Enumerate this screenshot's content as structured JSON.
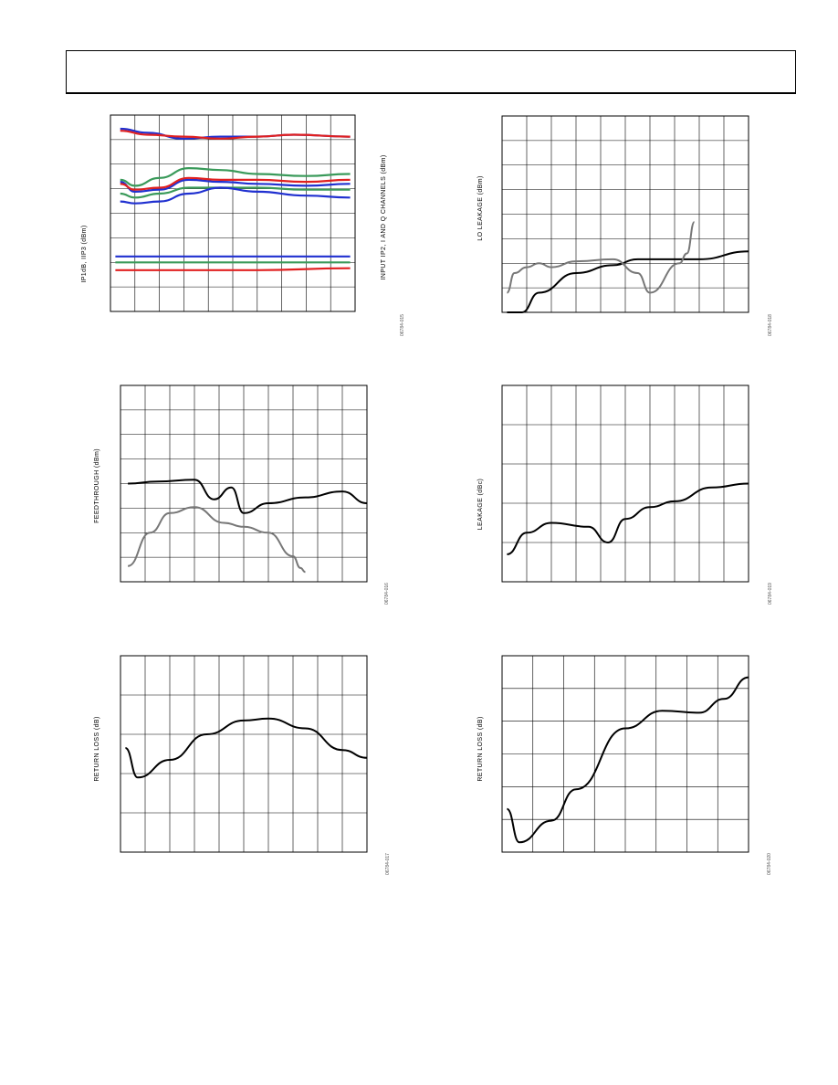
{
  "colors": {
    "blue": "#2030d0",
    "green": "#3a9a5a",
    "red": "#e02020",
    "black": "#000000",
    "gray": "#777777"
  },
  "charts": {
    "c1": {
      "ylabel": "IP1dB, IIP3 (dBm)",
      "ylabel_right": "INPUT IP2, I AND Q CHANNELS (dBm)",
      "code": "06784-015"
    },
    "c2": {
      "ylabel": "LO LEAKAGE (dBm)",
      "code": "06784-018"
    },
    "c3": {
      "ylabel": "FEEDTHROUGH (dBm)",
      "code": "06784-016"
    },
    "c4": {
      "ylabel": "LEAKAGE (dBc)",
      "code": "06784-019"
    },
    "c5": {
      "ylabel": "RETURN LOSS (dB)",
      "code": "06784-017"
    },
    "c6": {
      "ylabel": "RETURN LOSS (dB)",
      "code": "06784-020"
    }
  },
  "chart_data": [
    {
      "type": "line",
      "ylabel": "IP1dB, IIP3 (dBm)",
      "grid": true,
      "series": [
        {
          "color": "blue",
          "values": [
            [
              0.04,
              0.93
            ],
            [
              0.15,
              0.91
            ],
            [
              0.3,
              0.88
            ],
            [
              0.45,
              0.89
            ],
            [
              0.6,
              0.89
            ],
            [
              0.75,
              0.9
            ],
            [
              0.98,
              0.89
            ]
          ]
        },
        {
          "color": "red",
          "values": [
            [
              0.04,
              0.92
            ],
            [
              0.15,
              0.9
            ],
            [
              0.3,
              0.89
            ],
            [
              0.45,
              0.88
            ],
            [
              0.6,
              0.89
            ],
            [
              0.75,
              0.9
            ],
            [
              0.98,
              0.89
            ]
          ]
        },
        {
          "color": "blue",
          "values": [
            [
              0.04,
              0.66
            ],
            [
              0.1,
              0.61
            ],
            [
              0.2,
              0.62
            ],
            [
              0.32,
              0.67
            ],
            [
              0.45,
              0.66
            ],
            [
              0.6,
              0.65
            ],
            [
              0.8,
              0.64
            ],
            [
              0.98,
              0.65
            ]
          ]
        },
        {
          "color": "red",
          "values": [
            [
              0.04,
              0.65
            ],
            [
              0.1,
              0.62
            ],
            [
              0.2,
              0.63
            ],
            [
              0.32,
              0.68
            ],
            [
              0.45,
              0.67
            ],
            [
              0.6,
              0.67
            ],
            [
              0.8,
              0.66
            ],
            [
              0.98,
              0.67
            ]
          ]
        },
        {
          "color": "green",
          "values": [
            [
              0.04,
              0.67
            ],
            [
              0.1,
              0.64
            ],
            [
              0.2,
              0.68
            ],
            [
              0.32,
              0.73
            ],
            [
              0.45,
              0.72
            ],
            [
              0.6,
              0.7
            ],
            [
              0.8,
              0.69
            ],
            [
              0.98,
              0.7
            ]
          ]
        },
        {
          "color": "green",
          "values": [
            [
              0.04,
              0.6
            ],
            [
              0.1,
              0.58
            ],
            [
              0.2,
              0.6
            ],
            [
              0.32,
              0.63
            ],
            [
              0.45,
              0.63
            ],
            [
              0.6,
              0.63
            ],
            [
              0.8,
              0.62
            ],
            [
              0.98,
              0.62
            ]
          ]
        },
        {
          "color": "blue",
          "values": [
            [
              0.04,
              0.56
            ],
            [
              0.1,
              0.55
            ],
            [
              0.2,
              0.56
            ],
            [
              0.32,
              0.6
            ],
            [
              0.45,
              0.63
            ],
            [
              0.6,
              0.61
            ],
            [
              0.8,
              0.59
            ],
            [
              0.98,
              0.58
            ]
          ]
        },
        {
          "color": "blue",
          "values": [
            [
              0.02,
              0.28
            ],
            [
              0.3,
              0.28
            ],
            [
              0.6,
              0.28
            ],
            [
              0.98,
              0.28
            ]
          ]
        },
        {
          "color": "green",
          "values": [
            [
              0.02,
              0.25
            ],
            [
              0.3,
              0.25
            ],
            [
              0.6,
              0.25
            ],
            [
              0.98,
              0.25
            ]
          ]
        },
        {
          "color": "red",
          "values": [
            [
              0.02,
              0.21
            ],
            [
              0.3,
              0.21
            ],
            [
              0.6,
              0.21
            ],
            [
              0.98,
              0.22
            ]
          ]
        }
      ]
    },
    {
      "type": "line",
      "ylabel": "LO LEAKAGE (dBm)",
      "grid": true,
      "series": [
        {
          "color": "black",
          "values": [
            [
              0.02,
              0.0
            ],
            [
              0.08,
              0.0
            ],
            [
              0.15,
              0.1
            ],
            [
              0.3,
              0.2
            ],
            [
              0.45,
              0.24
            ],
            [
              0.55,
              0.27
            ],
            [
              0.65,
              0.27
            ],
            [
              0.8,
              0.27
            ],
            [
              1.0,
              0.31
            ]
          ]
        },
        {
          "color": "gray",
          "values": [
            [
              0.02,
              0.1
            ],
            [
              0.05,
              0.2
            ],
            [
              0.1,
              0.23
            ],
            [
              0.15,
              0.25
            ],
            [
              0.2,
              0.23
            ],
            [
              0.3,
              0.26
            ],
            [
              0.45,
              0.27
            ],
            [
              0.55,
              0.2
            ],
            [
              0.6,
              0.1
            ],
            [
              0.72,
              0.25
            ],
            [
              0.75,
              0.3
            ],
            [
              0.78,
              0.46
            ]
          ]
        }
      ]
    },
    {
      "type": "line",
      "ylabel": "FEEDTHROUGH (dBm)",
      "grid": true,
      "series": [
        {
          "color": "black",
          "values": [
            [
              0.03,
              0.5
            ],
            [
              0.15,
              0.51
            ],
            [
              0.3,
              0.52
            ],
            [
              0.38,
              0.42
            ],
            [
              0.45,
              0.48
            ],
            [
              0.5,
              0.35
            ],
            [
              0.6,
              0.4
            ],
            [
              0.75,
              0.43
            ],
            [
              0.9,
              0.46
            ],
            [
              1.0,
              0.4
            ]
          ]
        },
        {
          "color": "gray",
          "values": [
            [
              0.03,
              0.08
            ],
            [
              0.12,
              0.25
            ],
            [
              0.2,
              0.35
            ],
            [
              0.3,
              0.38
            ],
            [
              0.42,
              0.3
            ],
            [
              0.5,
              0.28
            ],
            [
              0.6,
              0.25
            ],
            [
              0.7,
              0.13
            ],
            [
              0.73,
              0.07
            ],
            [
              0.75,
              0.05
            ]
          ]
        }
      ]
    },
    {
      "type": "line",
      "ylabel": "LEAKAGE (dBc)",
      "grid": true,
      "series": [
        {
          "color": "black",
          "values": [
            [
              0.02,
              0.14
            ],
            [
              0.1,
              0.25
            ],
            [
              0.2,
              0.3
            ],
            [
              0.35,
              0.28
            ],
            [
              0.43,
              0.2
            ],
            [
              0.5,
              0.32
            ],
            [
              0.6,
              0.38
            ],
            [
              0.7,
              0.41
            ],
            [
              0.85,
              0.48
            ],
            [
              1.0,
              0.5
            ]
          ]
        }
      ]
    },
    {
      "type": "line",
      "ylabel": "RETURN LOSS (dB)",
      "grid": true,
      "series": [
        {
          "color": "black",
          "values": [
            [
              0.02,
              0.53
            ],
            [
              0.07,
              0.38
            ],
            [
              0.2,
              0.47
            ],
            [
              0.35,
              0.6
            ],
            [
              0.5,
              0.67
            ],
            [
              0.6,
              0.68
            ],
            [
              0.75,
              0.63
            ],
            [
              0.9,
              0.52
            ],
            [
              1.0,
              0.48
            ]
          ]
        }
      ]
    },
    {
      "type": "line",
      "ylabel": "RETURN LOSS (dB)",
      "grid": true,
      "series": [
        {
          "color": "black",
          "values": [
            [
              0.02,
              0.22
            ],
            [
              0.07,
              0.05
            ],
            [
              0.2,
              0.16
            ],
            [
              0.3,
              0.32
            ],
            [
              0.5,
              0.63
            ],
            [
              0.65,
              0.72
            ],
            [
              0.8,
              0.71
            ],
            [
              0.9,
              0.78
            ],
            [
              1.0,
              0.89
            ]
          ]
        }
      ]
    }
  ]
}
